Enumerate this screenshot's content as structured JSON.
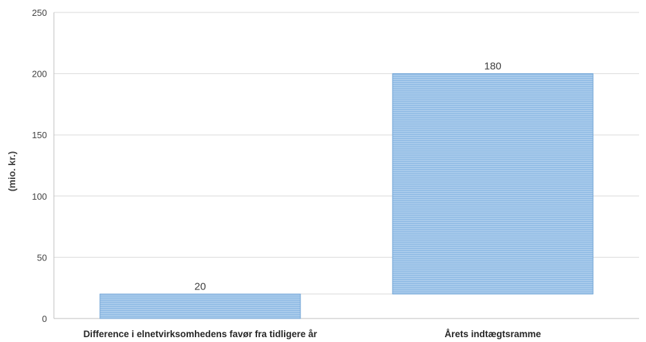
{
  "chart_data": {
    "type": "bar",
    "subtype": "waterfall",
    "categories": [
      "Difference i elnetvirksomhedens favør fra tidligere år",
      "Årets indtægtsramme"
    ],
    "bars": [
      {
        "category": "Difference i elnetvirksomhedens favør fra tidligere år",
        "start": 0,
        "end": 20,
        "label": "20"
      },
      {
        "category": "Årets indtægtsramme",
        "start": 20,
        "end": 200,
        "label": "180"
      }
    ],
    "ylabel": "(mio. kr.)",
    "ylim": [
      0,
      250
    ],
    "yticks": [
      "0",
      "50",
      "100",
      "150",
      "200",
      "250"
    ],
    "grid": true,
    "connector": true,
    "colors": {
      "bar_fill": "#9dc3e6",
      "bar_edge": "#6fa3d6",
      "grid": "#d9d9d9",
      "axis": "#bfbfbf",
      "text": "#404040"
    }
  }
}
